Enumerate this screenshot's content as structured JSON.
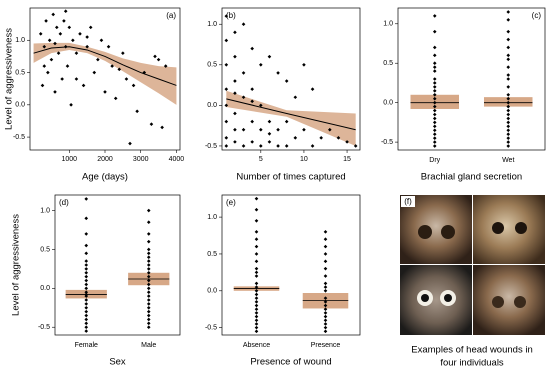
{
  "chart_data": [
    {
      "type": "scatter",
      "label": "(a)",
      "xlabel": "Age (days)",
      "ylabel": "Level of aggressiveness",
      "x": [
        200,
        250,
        300,
        350,
        400,
        450,
        500,
        550,
        600,
        650,
        700,
        750,
        800,
        850,
        900,
        950,
        1000,
        1050,
        1100,
        1200,
        1300,
        1400,
        1500,
        1600,
        1700,
        1800,
        1900,
        2000,
        2100,
        2200,
        2300,
        2500,
        2600,
        2700,
        2800,
        2900,
        3100,
        3300,
        3400,
        3500,
        3600,
        3700,
        300,
        600,
        900,
        1200,
        1500,
        2400
      ],
      "y": [
        1.1,
        0.3,
        0.9,
        1.3,
        0.5,
        1.0,
        0.7,
        1.4,
        0.2,
        1.2,
        0.8,
        1.1,
        0.4,
        1.3,
        0.9,
        0.6,
        1.2,
        0.0,
        1.0,
        0.8,
        1.1,
        0.3,
        0.9,
        1.2,
        0.5,
        0.7,
        1.0,
        0.2,
        0.9,
        0.6,
        0.1,
        0.8,
        0.4,
        -0.6,
        0.3,
        -0.1,
        0.5,
        -0.3,
        0.75,
        0.7,
        -0.35,
        0.6,
        0.6,
        0.95,
        1.45,
        0.4,
        1.05,
        0.55
      ],
      "fit": {
        "x": [
          0,
          500,
          1000,
          1500,
          2000,
          2500,
          3000,
          3500,
          4000
        ],
        "y": [
          0.8,
          0.88,
          0.9,
          0.85,
          0.75,
          0.62,
          0.5,
          0.4,
          0.3
        ],
        "lower": [
          0.65,
          0.8,
          0.85,
          0.8,
          0.68,
          0.52,
          0.35,
          0.18,
          0.0
        ],
        "upper": [
          0.95,
          0.96,
          0.96,
          0.9,
          0.82,
          0.72,
          0.65,
          0.6,
          0.58
        ]
      },
      "xlim": [
        -100,
        4100
      ],
      "xticks": [
        1000,
        2000,
        3000,
        4000
      ],
      "ylim": [
        -0.7,
        1.5
      ],
      "yticks": [
        -0.5,
        {
          "value": 0,
          "label": "0.0"
        },
        0.5,
        {
          "value": 1,
          "label": "1.0"
        }
      ],
      "point_color": "#000000",
      "band_color": "#d7a887",
      "line_color": "#000000"
    },
    {
      "type": "scatter",
      "label": "(b)",
      "xlabel": "Number of times captured",
      "x": [
        1,
        1,
        1,
        1,
        1,
        1,
        1,
        1,
        2,
        2,
        2,
        2,
        2,
        2,
        3,
        3,
        3,
        3,
        3,
        4,
        4,
        4,
        4,
        5,
        5,
        5,
        5,
        6,
        6,
        6,
        7,
        7,
        7,
        8,
        8,
        8,
        9,
        9,
        10,
        10,
        11,
        11,
        12,
        13,
        14,
        15,
        16,
        2,
        4,
        6
      ],
      "y": [
        1.1,
        0.8,
        0.5,
        0.2,
        0.0,
        -0.2,
        -0.4,
        -0.5,
        0.9,
        0.6,
        0.3,
        -0.1,
        -0.3,
        -0.45,
        1.0,
        0.4,
        0.1,
        -0.3,
        -0.5,
        0.7,
        0.2,
        -0.2,
        -0.45,
        0.5,
        0.0,
        -0.3,
        -0.5,
        0.6,
        -0.2,
        -0.45,
        0.4,
        -0.3,
        -0.5,
        0.3,
        -0.2,
        -0.5,
        0.1,
        -0.4,
        0.5,
        -0.3,
        0.2,
        -0.5,
        -0.4,
        -0.3,
        -0.4,
        -0.45,
        -0.5,
        0.15,
        0.05,
        -0.35
      ],
      "fit": {
        "x": [
          1,
          8,
          16
        ],
        "y": [
          0.08,
          -0.1,
          -0.3
        ],
        "lower": [
          -0.02,
          -0.14,
          -0.5
        ],
        "upper": [
          0.18,
          -0.06,
          -0.1
        ]
      },
      "xlim": [
        0.5,
        16.5
      ],
      "xticks": [
        5,
        10,
        15
      ],
      "ylim": [
        -0.55,
        1.2
      ],
      "yticks": [
        -0.5,
        {
          "value": 0,
          "label": "0.0"
        },
        0.5,
        {
          "value": 1,
          "label": "1.0"
        }
      ],
      "point_color": "#000000",
      "band_color": "#d7a887",
      "line_color": "#000000"
    },
    {
      "type": "strip",
      "label": "(c)",
      "xlabel": "Brachial gland secretion",
      "categories": [
        "Dry",
        "Wet"
      ],
      "values": [
        [
          1.1,
          0.9,
          0.7,
          0.6,
          0.5,
          0.4,
          0.3,
          0.25,
          0.2,
          0.15,
          0.1,
          0.05,
          0.0,
          -0.05,
          -0.1,
          -0.15,
          -0.2,
          -0.25,
          -0.3,
          -0.35,
          -0.4,
          -0.45,
          -0.5,
          -0.55,
          0.45
        ],
        [
          1.15,
          1.05,
          0.9,
          0.8,
          0.7,
          0.55,
          0.45,
          0.35,
          0.3,
          0.2,
          0.1,
          0.05,
          0.0,
          -0.05,
          -0.1,
          -0.15,
          -0.2,
          -0.25,
          -0.3,
          -0.35,
          -0.4,
          -0.45,
          -0.5,
          -0.55,
          0.6
        ]
      ],
      "mean": [
        0.0,
        0.0
      ],
      "lower": [
        -0.08,
        -0.05
      ],
      "upper": [
        0.1,
        0.07
      ],
      "ylim": [
        -0.6,
        1.2
      ],
      "yticks": [
        -0.5,
        {
          "value": 0,
          "label": "0.0"
        },
        0.5,
        {
          "value": 1,
          "label": "1.0"
        }
      ],
      "point_color": "#000000",
      "band_color": "#d7a887",
      "line_color": "#000000"
    },
    {
      "type": "strip",
      "label": "(d)",
      "xlabel": "Sex",
      "ylabel": "Level of aggressiveness",
      "categories": [
        "Female",
        "Male"
      ],
      "values": [
        [
          1.15,
          0.9,
          0.7,
          0.55,
          0.45,
          0.35,
          0.25,
          0.15,
          0.1,
          0.05,
          0.0,
          -0.05,
          -0.1,
          -0.15,
          -0.2,
          -0.25,
          -0.3,
          -0.35,
          -0.4,
          -0.45,
          -0.5,
          -0.55,
          0.3,
          -0.08,
          0.2
        ],
        [
          1.0,
          0.85,
          0.7,
          0.6,
          0.5,
          0.45,
          0.4,
          0.35,
          0.3,
          0.25,
          0.2,
          0.15,
          0.1,
          0.05,
          0.0,
          -0.05,
          -0.1,
          -0.15,
          -0.2,
          -0.25,
          -0.3,
          -0.35,
          -0.4,
          -0.45,
          -0.5
        ]
      ],
      "mean": [
        -0.08,
        0.12
      ],
      "lower": [
        -0.13,
        0.04
      ],
      "upper": [
        -0.02,
        0.2
      ],
      "ylim": [
        -0.6,
        1.2
      ],
      "yticks": [
        -0.5,
        {
          "value": 0,
          "label": "0.0"
        },
        0.5,
        {
          "value": 1,
          "label": "1.0"
        }
      ],
      "point_color": "#000000",
      "band_color": "#d7a887",
      "line_color": "#000000"
    },
    {
      "type": "strip",
      "label": "(e)",
      "xlabel": "Presence of wound",
      "categories": [
        "Absence",
        "Presence"
      ],
      "values": [
        [
          1.25,
          1.1,
          0.95,
          0.8,
          0.7,
          0.6,
          0.5,
          0.4,
          0.3,
          0.2,
          0.1,
          0.05,
          0.0,
          -0.05,
          -0.1,
          -0.15,
          -0.2,
          -0.25,
          -0.3,
          -0.35,
          -0.4,
          -0.45,
          -0.5,
          -0.55,
          0.25
        ],
        [
          0.8,
          0.7,
          0.6,
          0.5,
          0.4,
          0.3,
          0.2,
          0.1,
          0.0,
          -0.1,
          -0.2,
          -0.3,
          -0.4,
          -0.5,
          -0.55,
          0.05,
          -0.15,
          -0.25,
          -0.35,
          -0.45
        ]
      ],
      "mean": [
        0.03,
        -0.13
      ],
      "lower": [
        0.0,
        -0.24
      ],
      "upper": [
        0.06,
        -0.03
      ],
      "ylim": [
        -0.6,
        1.3
      ],
      "yticks": [
        -0.5,
        {
          "value": 0,
          "label": "0.0"
        },
        0.5,
        {
          "value": 1,
          "label": "1.0"
        }
      ],
      "point_color": "#000000",
      "band_color": "#d7a887",
      "line_color": "#000000"
    }
  ],
  "photo_panel": {
    "label": "(f)",
    "caption_lines": [
      "Examples of head wounds in",
      "four individuals"
    ]
  }
}
